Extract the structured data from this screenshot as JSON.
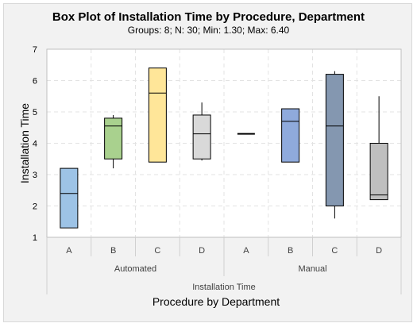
{
  "chart_data": {
    "type": "boxplot",
    "title": "Box Plot of Installation Time by Procedure, Department",
    "subtitle": "Groups: 8; N: 30; Min: 1.30; Max: 6.40",
    "ylabel": "Installation Time",
    "xlabel": "Procedure by Department",
    "group_axis_label": "Installation Time",
    "ylim": [
      1,
      7
    ],
    "yticks": [
      "1",
      "2",
      "3",
      "4",
      "5",
      "6",
      "7"
    ],
    "grid": true,
    "departments": [
      {
        "name": "Automated",
        "categories": [
          "A",
          "B",
          "C",
          "D"
        ]
      },
      {
        "name": "Manual",
        "categories": [
          "A",
          "B",
          "C",
          "D"
        ]
      }
    ],
    "boxes": [
      {
        "department": "Automated",
        "category": "A",
        "min": 1.3,
        "q1": 1.3,
        "median": 2.4,
        "q3": 3.2,
        "max": 3.2,
        "color": "#9dc3e6"
      },
      {
        "department": "Automated",
        "category": "B",
        "min": 3.2,
        "q1": 3.5,
        "median": 4.55,
        "q3": 4.8,
        "max": 4.9,
        "color": "#a9d18e"
      },
      {
        "department": "Automated",
        "category": "C",
        "min": 3.4,
        "q1": 3.4,
        "median": 5.6,
        "q3": 6.4,
        "max": 6.4,
        "color": "#ffe699"
      },
      {
        "department": "Automated",
        "category": "D",
        "min": 3.45,
        "q1": 3.5,
        "median": 4.3,
        "q3": 4.9,
        "max": 5.3,
        "color": "#d9d9d9"
      },
      {
        "department": "Manual",
        "category": "A",
        "min": 4.3,
        "q1": 4.3,
        "median": 4.3,
        "q3": 4.3,
        "max": 4.3,
        "color": "#9dc3e6"
      },
      {
        "department": "Manual",
        "category": "B",
        "min": 3.4,
        "q1": 3.4,
        "median": 4.7,
        "q3": 5.1,
        "max": 5.1,
        "color": "#8faadc"
      },
      {
        "department": "Manual",
        "category": "C",
        "min": 1.6,
        "q1": 2.0,
        "median": 4.55,
        "q3": 6.2,
        "max": 6.3,
        "color": "#8497b0"
      },
      {
        "department": "Manual",
        "category": "D",
        "min": 2.2,
        "q1": 2.2,
        "median": 2.35,
        "q3": 4.0,
        "max": 5.5,
        "color": "#bfbfbf"
      }
    ]
  }
}
